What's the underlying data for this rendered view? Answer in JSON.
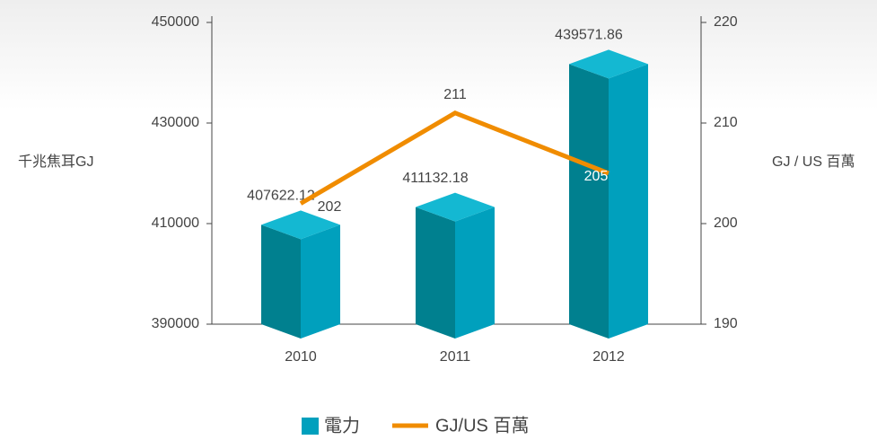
{
  "chart_data": {
    "type": "bar_line",
    "categories": [
      "2010",
      "2011",
      "2012"
    ],
    "series": [
      {
        "name": "電力",
        "type": "bar",
        "color": "#00a0bd",
        "values": [
          407622.12,
          411132.18,
          439571.86
        ]
      },
      {
        "name": "GJ/US 百萬",
        "type": "line",
        "axis": "y2",
        "color": "#f08c00",
        "values": [
          202,
          211,
          205
        ]
      }
    ],
    "ylabel": "千兆焦耳GJ",
    "y2label": "GJ / US 百萬",
    "ylim": [
      390000,
      450000
    ],
    "yticks": [
      390000,
      410000,
      430000,
      450000
    ],
    "y2lim": [
      190,
      220
    ],
    "y2ticks": [
      190,
      200,
      210,
      220
    ],
    "legend": "bottom"
  }
}
